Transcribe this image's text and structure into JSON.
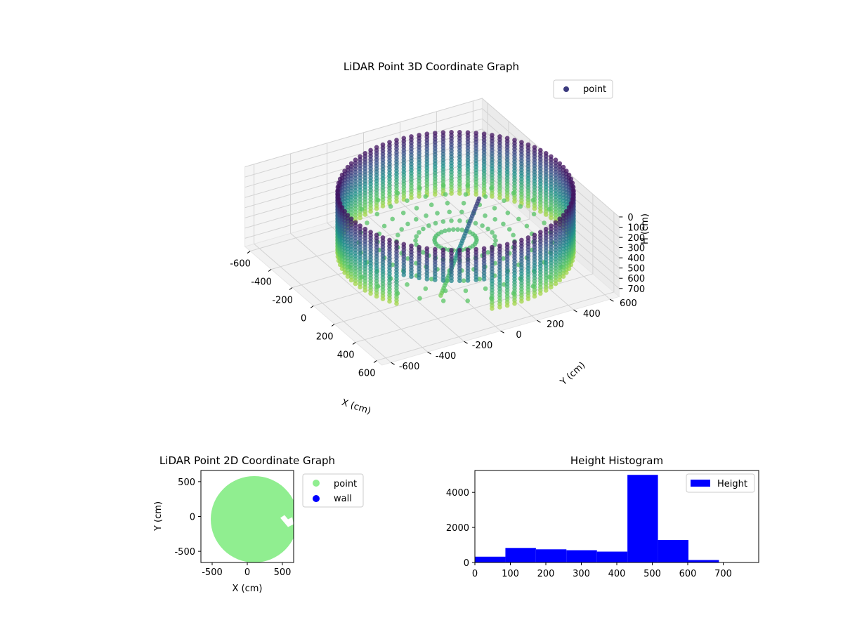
{
  "chart_data": [
    {
      "type": "scatter3d",
      "title": "LiDAR Point 3D Coordinate Graph",
      "xlabel": "X (cm)",
      "ylabel": "Y (cm)",
      "zlabel": "H (cm)",
      "xticks": [
        -600,
        -400,
        -200,
        0,
        200,
        400,
        600
      ],
      "yticks": [
        -600,
        -400,
        -200,
        0,
        200,
        400,
        600
      ],
      "zticks": [
        0,
        100,
        200,
        300,
        400,
        500,
        600,
        700
      ],
      "xlim": [
        -650,
        650
      ],
      "ylim": [
        -650,
        650
      ],
      "zlim": [
        780,
        0
      ],
      "zaxis_inverted": true,
      "legend": {
        "label": "point",
        "position": "top-right"
      },
      "colormap": "viridis",
      "grid": true,
      "description_of_data": {
        "cylinder_radius_cm": 560,
        "cylinder_center": [
          50,
          100
        ],
        "height_range_cm": [
          0,
          600
        ]
      }
    },
    {
      "type": "scatter",
      "title": "LiDAR Point 2D Coordinate Graph",
      "xlabel": "X (cm)",
      "ylabel": "Y (cm)",
      "xticks": [
        -500,
        0,
        500
      ],
      "yticks": [
        -500,
        0,
        500
      ],
      "xlim": [
        -660,
        660
      ],
      "ylim": [
        -660,
        660
      ],
      "series": [
        {
          "name": "point",
          "color": "#90ee90",
          "shape": "disk",
          "center": [
            100,
            -40
          ],
          "radius": 620
        },
        {
          "name": "wall",
          "color": "#0000ff"
        }
      ],
      "legend": {
        "position": "outside-right"
      }
    },
    {
      "type": "bar",
      "title": "Height Histogram",
      "xlabel": "",
      "ylabel": "",
      "bin_edges": [
        0,
        86,
        172,
        258,
        344,
        430,
        516,
        602,
        688,
        774
      ],
      "values": [
        330,
        830,
        750,
        700,
        620,
        5000,
        1280,
        140,
        20
      ],
      "xticks": [
        0,
        100,
        200,
        300,
        400,
        500,
        600,
        700
      ],
      "yticks": [
        0,
        2000,
        4000
      ],
      "xlim": [
        0,
        800
      ],
      "ylim": [
        0,
        5250
      ],
      "series": [
        {
          "name": "Height",
          "color": "#0000ff"
        }
      ],
      "legend": {
        "position": "top-right"
      }
    }
  ]
}
